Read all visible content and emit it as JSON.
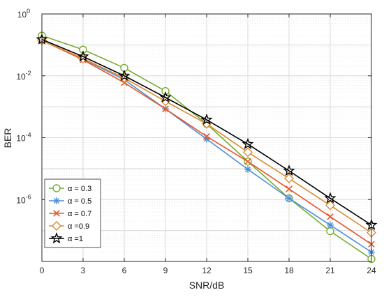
{
  "chart_data": {
    "type": "line",
    "title": "",
    "xlabel": "SNR/dB",
    "ylabel": "BER",
    "x": [
      0,
      3,
      6,
      9,
      12,
      15,
      18,
      21,
      24
    ],
    "xlim": [
      0,
      24
    ],
    "ylim": [
      1e-08,
      1
    ],
    "yscale": "log",
    "xticks": [
      0,
      3,
      6,
      9,
      12,
      15,
      18,
      21,
      24
    ],
    "yticks": [
      {
        "value": 1,
        "base": "10",
        "exp": "0"
      },
      {
        "value": 0.01,
        "base": "10",
        "exp": "-2"
      },
      {
        "value": 0.0001,
        "base": "10",
        "exp": "-4"
      },
      {
        "value": 1e-06,
        "base": "10",
        "exp": "-6"
      }
    ],
    "grid": true,
    "legend_position": "bottom-left",
    "series": [
      {
        "name": "α = 0.3",
        "color": "#77ac30",
        "marker": "circle",
        "values": [
          0.2,
          0.07,
          0.018,
          0.0032,
          0.00028,
          1.7e-05,
          1.1e-06,
          9.5e-08,
          1.2e-08
        ]
      },
      {
        "name": "α = 0.5",
        "color": "#4d8fd6",
        "marker": "asterisk",
        "values": [
          0.14,
          0.035,
          0.0075,
          0.00085,
          9e-05,
          9.5e-06,
          1.1e-06,
          1.5e-07,
          2e-08
        ]
      },
      {
        "name": "α = 0.7",
        "color": "#e8542b",
        "marker": "x",
        "values": [
          0.14,
          0.033,
          0.006,
          0.00085,
          0.00011,
          1.7e-05,
          2.2e-06,
          2.8e-07,
          3.6e-08
        ]
      },
      {
        "name": "α =0.9",
        "color": "#d98c2b",
        "marker": "diamond",
        "values": [
          0.14,
          0.036,
          0.0085,
          0.0015,
          0.00028,
          3.4e-05,
          4.8e-06,
          6.5e-07,
          8.5e-08
        ]
      },
      {
        "name": "α =1",
        "color": "#000000",
        "marker": "star",
        "values": [
          0.15,
          0.042,
          0.01,
          0.002,
          0.00038,
          6.2e-05,
          8.5e-06,
          1.1e-06,
          1.5e-07
        ]
      }
    ]
  }
}
